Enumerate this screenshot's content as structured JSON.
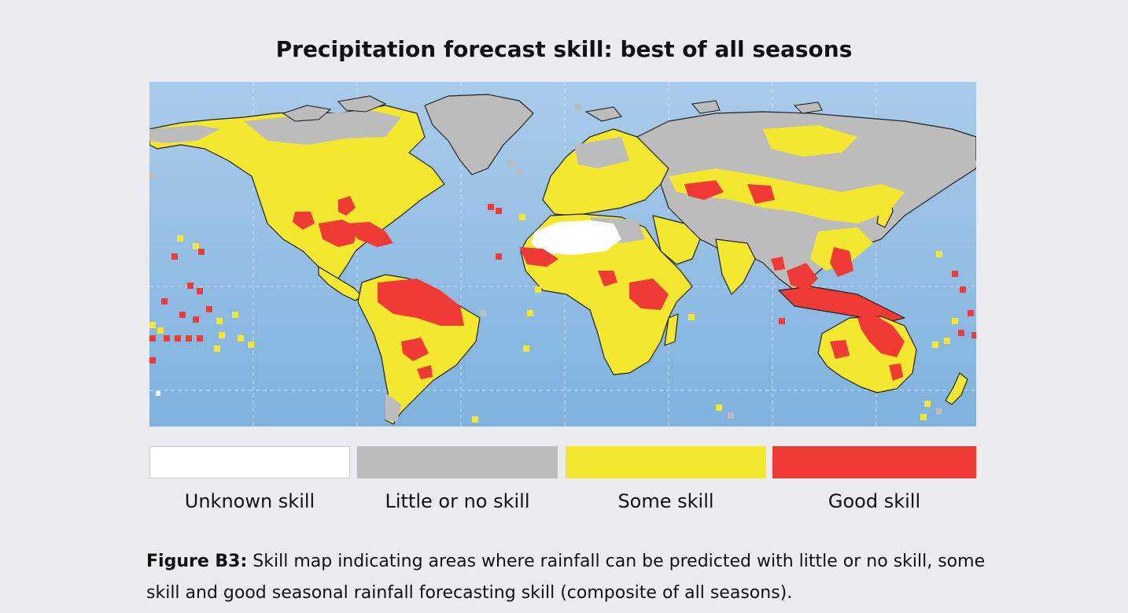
{
  "title": "Precipitation forecast skill: best of all seasons",
  "colors": {
    "ocean_top": "#a9cbea",
    "ocean_bottom": "#7fb2de",
    "unknown": "#ffffff",
    "little": "#bcbcbc",
    "some": "#f3e82e",
    "good": "#ef3a36",
    "border": "#111111"
  },
  "legend": [
    {
      "label": "Unknown skill",
      "color": "#ffffff"
    },
    {
      "label": "Little or no skill",
      "color": "#bcbcbc"
    },
    {
      "label": "Some skill",
      "color": "#f3e82e"
    },
    {
      "label": "Good skill",
      "color": "#ef3a36"
    }
  ],
  "caption": {
    "label": "Figure B3:",
    "text": " Skill map indicating areas where rainfall can be predicted with little or no skill, some skill and good seasonal rainfall forecasting skill (composite of all seasons)."
  }
}
